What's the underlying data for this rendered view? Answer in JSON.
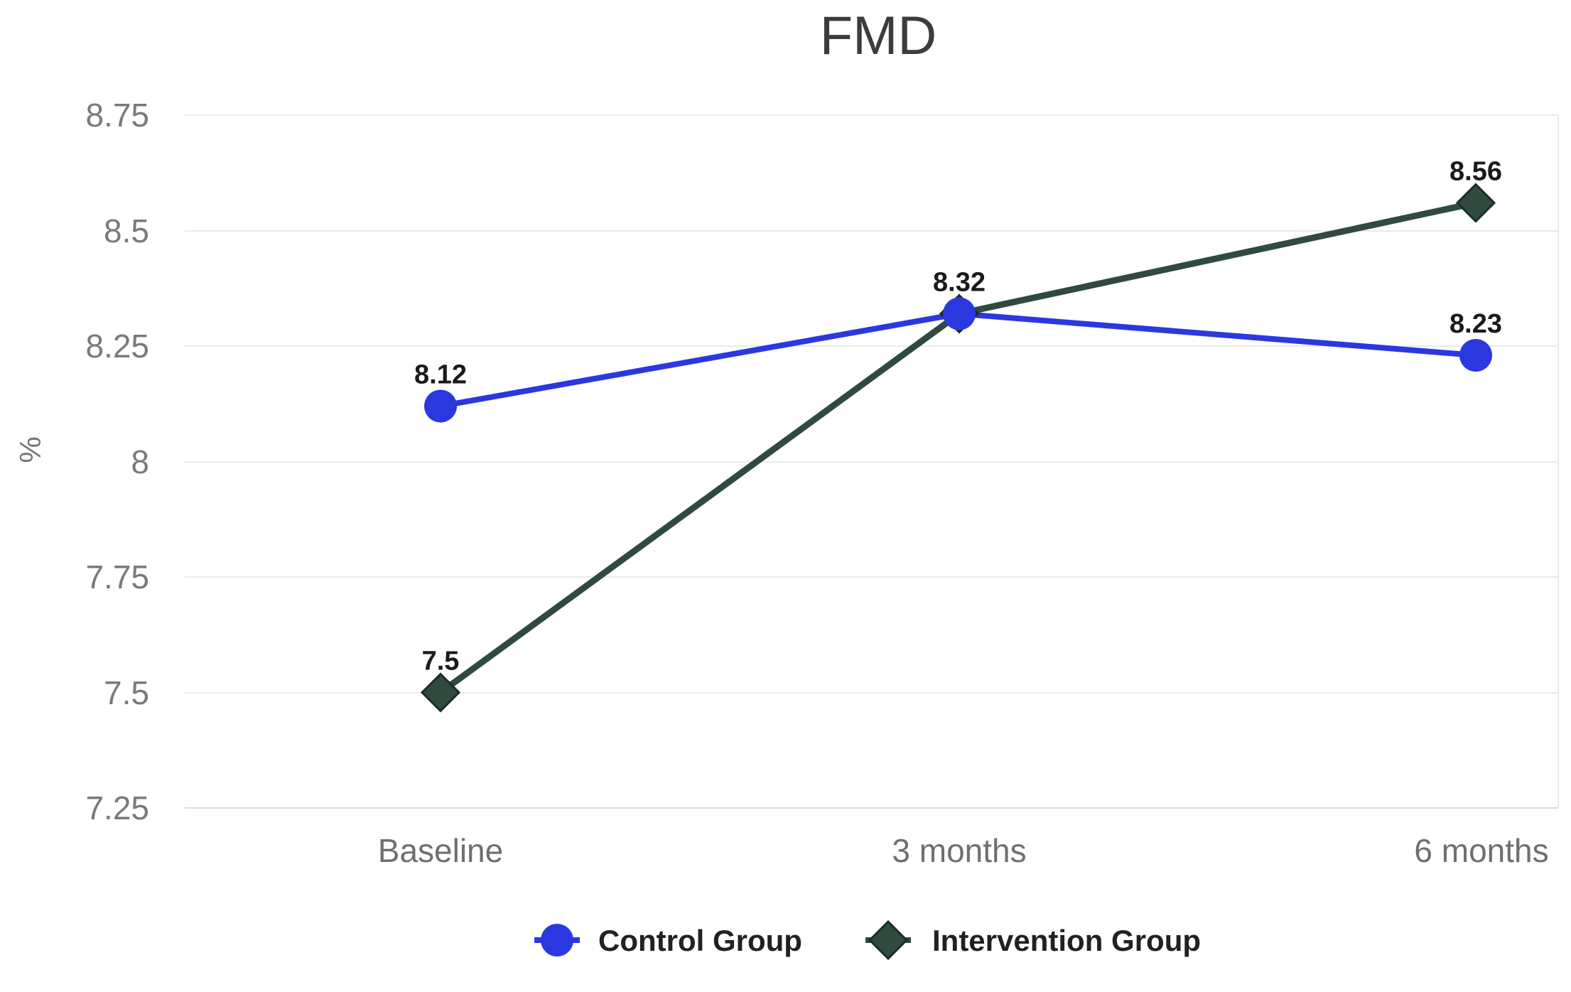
{
  "chart_data": {
    "type": "line",
    "title": "FMD",
    "ylabel": "%",
    "xlabel": "",
    "categories": [
      "Baseline",
      "3 months",
      "6 months"
    ],
    "yticks": [
      7.25,
      7.5,
      7.75,
      8,
      8.25,
      8.5,
      8.75
    ],
    "ylim": [
      7.25,
      8.75
    ],
    "grid": true,
    "legend_position": "bottom",
    "background_color": "#ffffff",
    "gridline_color": "#e9eaee",
    "series": [
      {
        "name": "Control Group",
        "marker": "circle",
        "color": "#2b38e0",
        "values": [
          8.12,
          8.32,
          8.23
        ],
        "labels": [
          "8.12",
          "8.32",
          "8.23"
        ]
      },
      {
        "name": "Intervention Group",
        "marker": "diamond",
        "color": "#304a3f",
        "marker_stroke": "#1b2d25",
        "values": [
          7.5,
          8.32,
          8.56
        ],
        "labels": [
          "7.5",
          null,
          "8.56"
        ]
      }
    ]
  }
}
